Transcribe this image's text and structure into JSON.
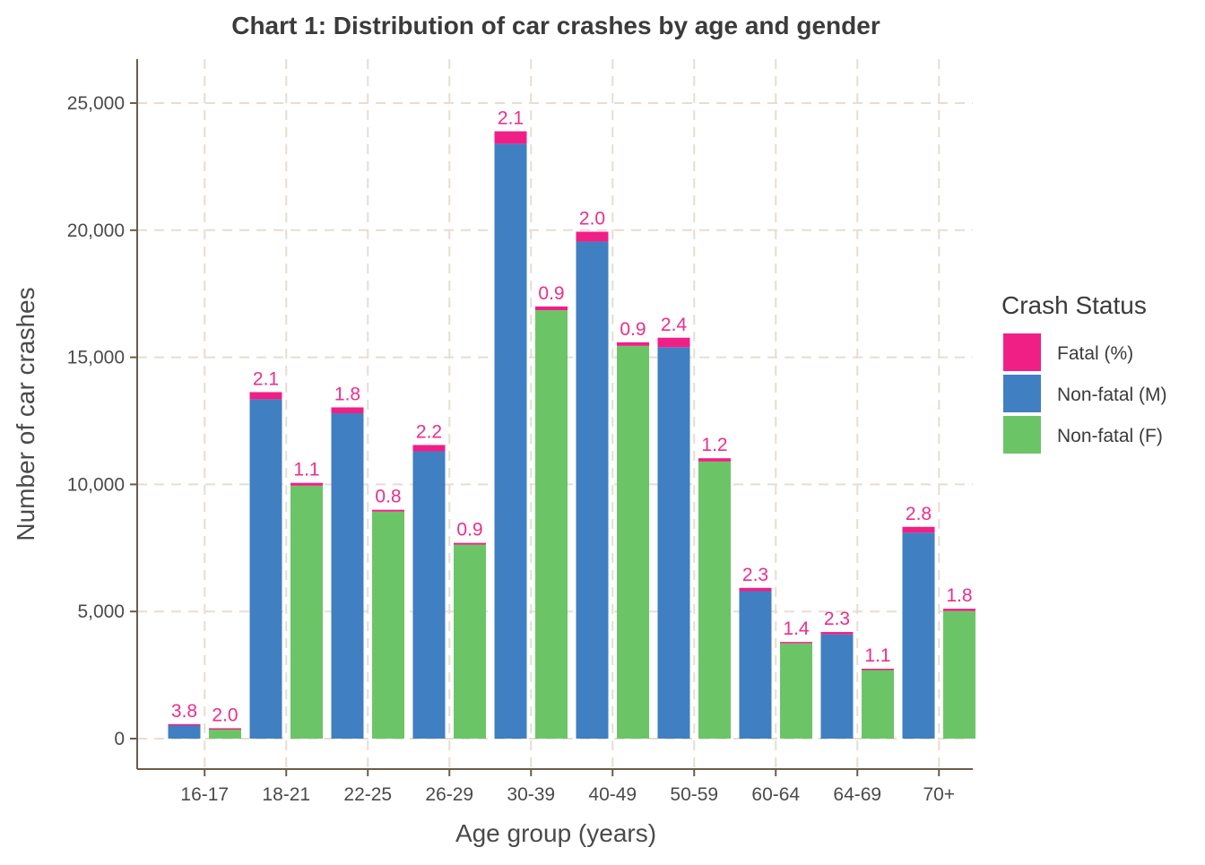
{
  "chart_data": {
    "type": "bar",
    "title": "Chart 1: Distribution of car crashes by age and gender",
    "xlabel": "Age group (years)",
    "ylabel": "Number of car crashes",
    "ylim": [
      0,
      26800
    ],
    "yticks": [
      0,
      5000,
      10000,
      15000,
      20000,
      25000
    ],
    "ytick_labels": [
      "0",
      "5,000",
      "10,000",
      "15,000",
      "20,000",
      "25,000"
    ],
    "grid": true,
    "stacked": true,
    "legend": {
      "title": "Crash Status",
      "position": "right",
      "entries": [
        {
          "label": "Fatal (%)",
          "color": "#f01f86"
        },
        {
          "label": "Non-fatal (M)",
          "color": "#3f7fc2"
        },
        {
          "label": "Non-fatal (F)",
          "color": "#6bc567"
        }
      ]
    },
    "categories": [
      "16-17",
      "18-21",
      "22-25",
      "26-29",
      "30-39",
      "40-49",
      "50-59",
      "60-64",
      "64-69",
      "70+"
    ],
    "bars": [
      {
        "category": "16-17",
        "gender": "M",
        "nonfatal": 550,
        "fatal": 21,
        "label": "3.8"
      },
      {
        "category": "16-17",
        "gender": "F",
        "nonfatal": 400,
        "fatal": 8,
        "label": "2.0"
      },
      {
        "category": "18-21",
        "gender": "M",
        "nonfatal": 13350,
        "fatal": 280,
        "label": "2.1"
      },
      {
        "category": "18-21",
        "gender": "F",
        "nonfatal": 9950,
        "fatal": 110,
        "label": "1.1"
      },
      {
        "category": "22-25",
        "gender": "M",
        "nonfatal": 12800,
        "fatal": 230,
        "label": "1.8"
      },
      {
        "category": "22-25",
        "gender": "F",
        "nonfatal": 8930,
        "fatal": 72,
        "label": "0.8"
      },
      {
        "category": "26-29",
        "gender": "M",
        "nonfatal": 11300,
        "fatal": 250,
        "label": "2.2"
      },
      {
        "category": "26-29",
        "gender": "F",
        "nonfatal": 7630,
        "fatal": 69,
        "label": "0.9"
      },
      {
        "category": "30-39",
        "gender": "M",
        "nonfatal": 23400,
        "fatal": 490,
        "label": "2.1"
      },
      {
        "category": "30-39",
        "gender": "F",
        "nonfatal": 16850,
        "fatal": 150,
        "label": "0.9"
      },
      {
        "category": "40-49",
        "gender": "M",
        "nonfatal": 19550,
        "fatal": 390,
        "label": "2.0"
      },
      {
        "category": "40-49",
        "gender": "F",
        "nonfatal": 15450,
        "fatal": 140,
        "label": "0.9"
      },
      {
        "category": "50-59",
        "gender": "M",
        "nonfatal": 15400,
        "fatal": 370,
        "label": "2.4"
      },
      {
        "category": "50-59",
        "gender": "F",
        "nonfatal": 10900,
        "fatal": 130,
        "label": "1.2"
      },
      {
        "category": "60-64",
        "gender": "M",
        "nonfatal": 5800,
        "fatal": 130,
        "label": "2.3"
      },
      {
        "category": "60-64",
        "gender": "F",
        "nonfatal": 3750,
        "fatal": 53,
        "label": "1.4"
      },
      {
        "category": "64-69",
        "gender": "M",
        "nonfatal": 4100,
        "fatal": 94,
        "label": "2.3"
      },
      {
        "category": "64-69",
        "gender": "F",
        "nonfatal": 2720,
        "fatal": 30,
        "label": "1.1"
      },
      {
        "category": "70+",
        "gender": "M",
        "nonfatal": 8100,
        "fatal": 230,
        "label": "2.8"
      },
      {
        "category": "70+",
        "gender": "F",
        "nonfatal": 5020,
        "fatal": 90,
        "label": "1.8"
      }
    ]
  }
}
